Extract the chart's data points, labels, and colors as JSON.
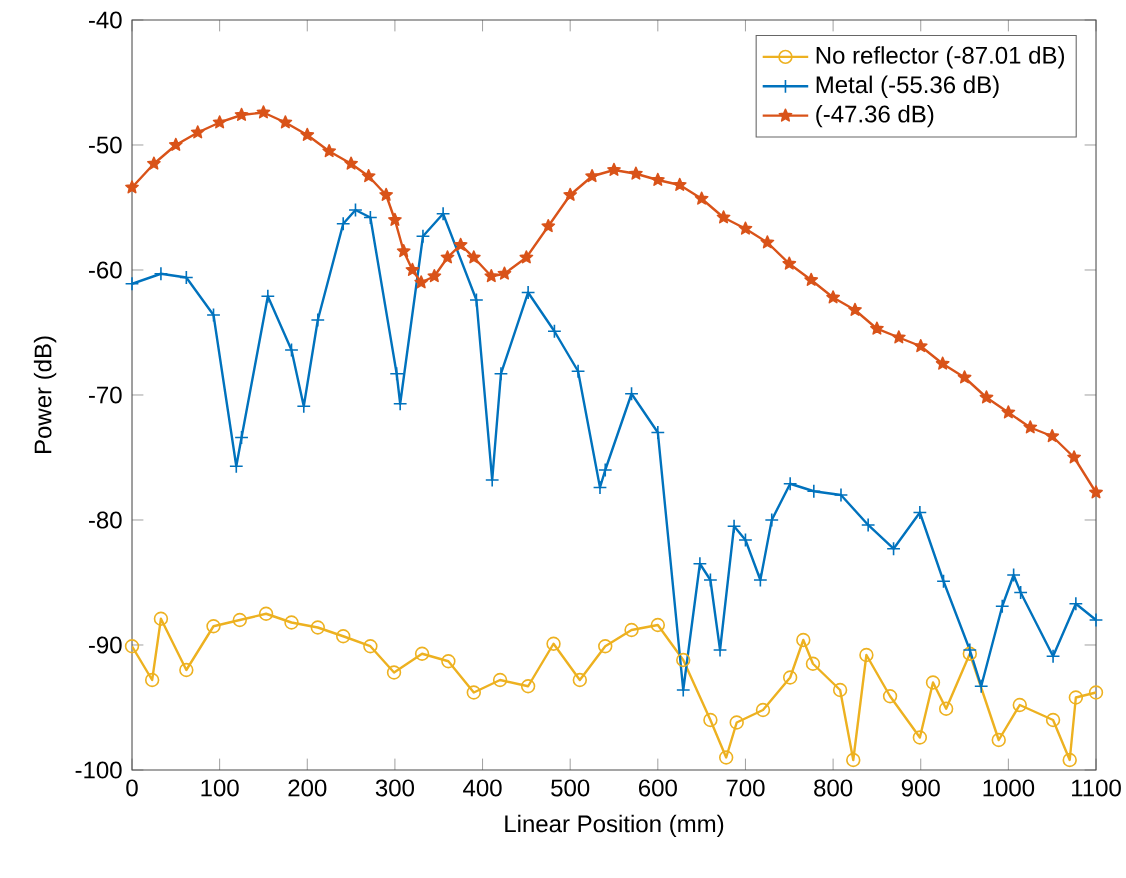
{
  "chart_data": {
    "type": "line",
    "xlabel": "Linear Position (mm)",
    "ylabel": "Power (dB)",
    "xlim": [
      0,
      1100
    ],
    "ylim": [
      -100,
      -40
    ],
    "xticks": [
      0,
      100,
      200,
      300,
      400,
      500,
      600,
      700,
      800,
      900,
      1000,
      1100
    ],
    "yticks": [
      -100,
      -90,
      -80,
      -70,
      -60,
      -50,
      -40
    ],
    "grid": false,
    "legend": "top right",
    "line_style": "solid",
    "series": [
      {
        "name": "No reflector (-87.01 dB)",
        "color": "#edb120",
        "marker": "circle",
        "x": [
          0,
          23,
          33,
          62,
          93,
          123,
          153,
          182,
          212,
          241,
          272,
          299,
          331,
          361,
          390,
          420,
          452,
          481,
          511,
          540,
          570,
          600,
          629,
          660,
          678,
          690,
          720,
          751,
          766,
          777,
          808,
          823,
          838,
          865,
          899,
          914,
          929,
          956,
          989,
          1013,
          1051,
          1070,
          1077,
          1100
        ],
        "values": [
          -90.1,
          -92.8,
          -87.9,
          -92,
          -88.5,
          -88,
          -87.5,
          -88.2,
          -88.6,
          -89.3,
          -90.1,
          -92.2,
          -90.7,
          -91.3,
          -93.8,
          -92.8,
          -93.3,
          -89.9,
          -92.8,
          -90.1,
          -88.8,
          -88.4,
          -91.2,
          -96,
          -99,
          -96.2,
          -95.2,
          -92.6,
          -89.6,
          -91.5,
          -93.6,
          -99.2,
          -90.8,
          -94.1,
          -97.4,
          -93,
          -95.1,
          -90.7,
          -97.6,
          -94.8,
          -96,
          -99.2,
          -94.2,
          -93.8
        ]
      },
      {
        "name": "Metal (-55.36 dB)",
        "color": "#0072bd",
        "marker": "cross",
        "x": [
          0,
          33,
          62,
          93,
          119,
          125,
          155,
          182,
          196,
          212,
          241,
          255,
          272,
          302,
          306,
          332,
          355,
          393,
          411,
          421,
          452,
          482,
          509,
          534,
          540,
          570,
          600,
          629,
          648,
          660,
          671,
          687,
          700,
          717,
          730,
          751,
          778,
          809,
          840,
          869,
          899,
          926,
          956,
          969,
          993,
          1006,
          1014,
          1051,
          1077,
          1100
        ],
        "values": [
          -61.1,
          -60.3,
          -60.6,
          -63.6,
          -75.7,
          -73.4,
          -62.1,
          -66.4,
          -70.9,
          -64,
          -56.3,
          -55.2,
          -55.8,
          -68.3,
          -70.7,
          -57.3,
          -55.5,
          -62.4,
          -76.8,
          -68.3,
          -61.8,
          -64.9,
          -68.1,
          -77.4,
          -76,
          -69.9,
          -73,
          -93.6,
          -83.5,
          -84.8,
          -90.4,
          -80.5,
          -81.6,
          -84.8,
          -80,
          -77.1,
          -77.7,
          -78,
          -80.4,
          -82.3,
          -79.4,
          -84.9,
          -90.4,
          -93.3,
          -86.9,
          -84.4,
          -85.8,
          -90.9,
          -86.7,
          -88
        ]
      },
      {
        "name": "(-47.36 dB)",
        "color": "#d95319",
        "marker": "star",
        "x": [
          0,
          25,
          50,
          75,
          100,
          125,
          150,
          175,
          200,
          225,
          250,
          270,
          290,
          300,
          310,
          320,
          330,
          345,
          360,
          375,
          390,
          410,
          425,
          450,
          475,
          500,
          525,
          550,
          575,
          600,
          625,
          650,
          675,
          700,
          725,
          750,
          775,
          800,
          825,
          850,
          875,
          900,
          925,
          950,
          975,
          1000,
          1025,
          1050,
          1075,
          1100
        ],
        "values": [
          -53.4,
          -51.5,
          -50,
          -49,
          -48.2,
          -47.6,
          -47.4,
          -48.2,
          -49.2,
          -50.5,
          -51.5,
          -52.5,
          -54,
          -56,
          -58.5,
          -60,
          -61,
          -60.5,
          -59,
          -58,
          -59,
          -60.5,
          -60.3,
          -59,
          -56.5,
          -54,
          -52.5,
          -52,
          -52.3,
          -52.8,
          -53.2,
          -54.3,
          -55.8,
          -56.7,
          -57.8,
          -59.5,
          -60.8,
          -62.2,
          -63.2,
          -64.7,
          -65.4,
          -66.1,
          -67.5,
          -68.6,
          -70.2,
          -71.4,
          -72.6,
          -73.3,
          -75,
          -77.8
        ]
      }
    ]
  }
}
